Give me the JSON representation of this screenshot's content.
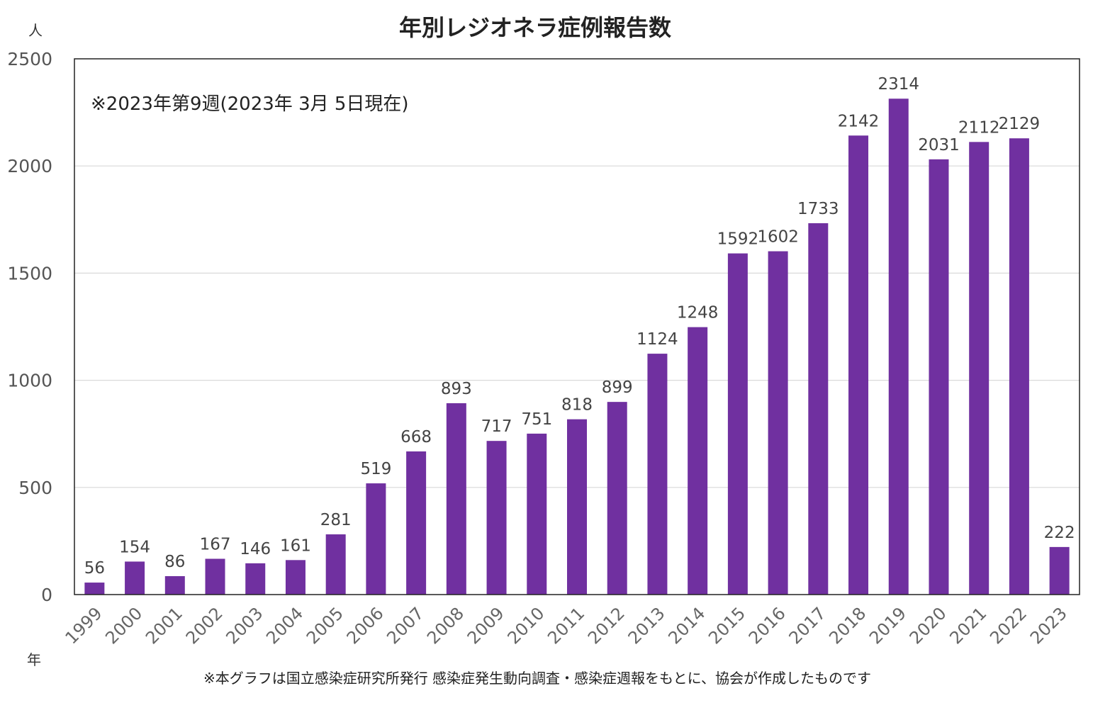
{
  "chart_data": {
    "type": "bar",
    "title": "年別レジオネラ症例報告数",
    "y_unit": "人",
    "x_unit": "年",
    "note": "※2023年第9週(2023年 3月 5日現在)",
    "footer": "※本グラフは国立感染症研究所発行 感染症発生動向調査・感染症週報をもとに、協会が作成したものです",
    "categories": [
      "1999",
      "2000",
      "2001",
      "2002",
      "2003",
      "2004",
      "2005",
      "2006",
      "2007",
      "2008",
      "2009",
      "2010",
      "2011",
      "2012",
      "2013",
      "2014",
      "2015",
      "2016",
      "2017",
      "2018",
      "2019",
      "2020",
      "2021",
      "2022",
      "2023"
    ],
    "values": [
      56,
      154,
      86,
      167,
      146,
      161,
      281,
      519,
      668,
      893,
      717,
      751,
      818,
      899,
      1124,
      1248,
      1592,
      1602,
      1733,
      2142,
      2314,
      2031,
      2112,
      2129,
      222
    ],
    "ylim": [
      0,
      2500
    ],
    "yticks": [
      0,
      500,
      1000,
      1500,
      2000,
      2500
    ],
    "grid": true,
    "bar_color": "#7030a0"
  }
}
